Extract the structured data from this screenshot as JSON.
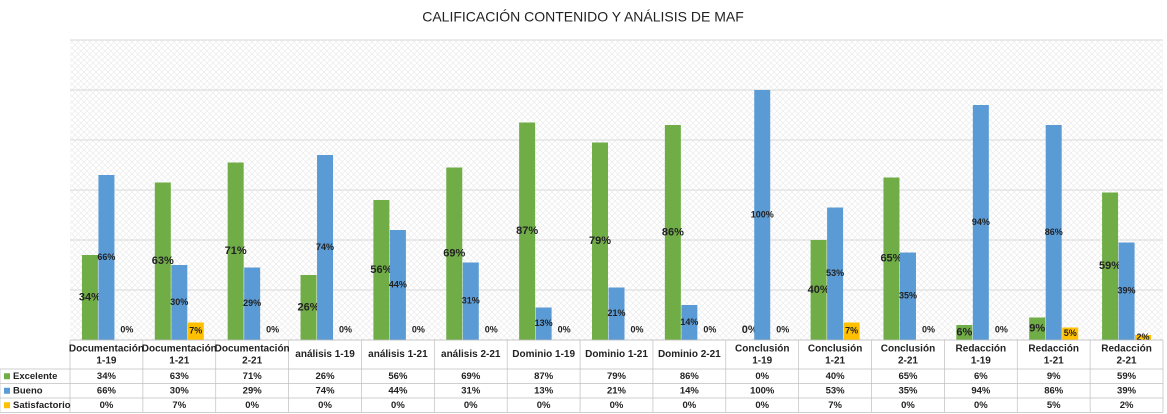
{
  "chart_data": {
    "type": "bar",
    "title": "CALIFICACIÓN  CONTENIDO Y ANÁLISIS DE MAF",
    "categories": [
      "Documentación 1-19",
      "Documentación 1-21",
      "Documentación 2-21",
      "análisis 1-19",
      "análisis 1-21",
      "análisis 2-21",
      "Dominio 1-19",
      "Dominio 1-21",
      "Dominio 2-21",
      "Conclusión 1-19",
      "Conclusión 1-21",
      "Conclusión 2-21",
      "Redacción 1-19",
      "Redacción 1-21",
      "Redacción 2-21"
    ],
    "series": [
      {
        "name": "Excelente",
        "color": "#70ad47",
        "values": [
          34,
          63,
          71,
          26,
          56,
          69,
          87,
          79,
          86,
          0,
          40,
          65,
          6,
          9,
          59
        ],
        "value_labels": [
          "34%",
          "63%",
          "71%",
          "26%",
          "56%",
          "69%",
          "87%",
          "79%",
          "86%",
          "0%",
          "40%",
          "65%",
          "6%",
          "9%",
          "59%"
        ]
      },
      {
        "name": "Bueno",
        "color": "#5b9bd5",
        "values": [
          66,
          30,
          29,
          74,
          44,
          31,
          13,
          21,
          14,
          100,
          53,
          35,
          94,
          86,
          39
        ],
        "value_labels": [
          "66%",
          "30%",
          "29%",
          "74%",
          "44%",
          "31%",
          "13%",
          "21%",
          "14%",
          "100%",
          "53%",
          "35%",
          "94%",
          "86%",
          "39%"
        ]
      },
      {
        "name": "Satisfactorio",
        "color": "#ffc000",
        "values": [
          0,
          7,
          0,
          0,
          0,
          0,
          0,
          0,
          0,
          0,
          7,
          0,
          0,
          5,
          2
        ],
        "value_labels": [
          "0%",
          "7%",
          "0%",
          "0%",
          "0%",
          "0%",
          "0%",
          "0%",
          "0%",
          "0%",
          "7%",
          "0%",
          "0%",
          "5%",
          "2%"
        ]
      }
    ],
    "ylim": [
      0,
      120
    ],
    "yticks": [
      0,
      20,
      40,
      60,
      80,
      100,
      120
    ],
    "grid": true
  }
}
